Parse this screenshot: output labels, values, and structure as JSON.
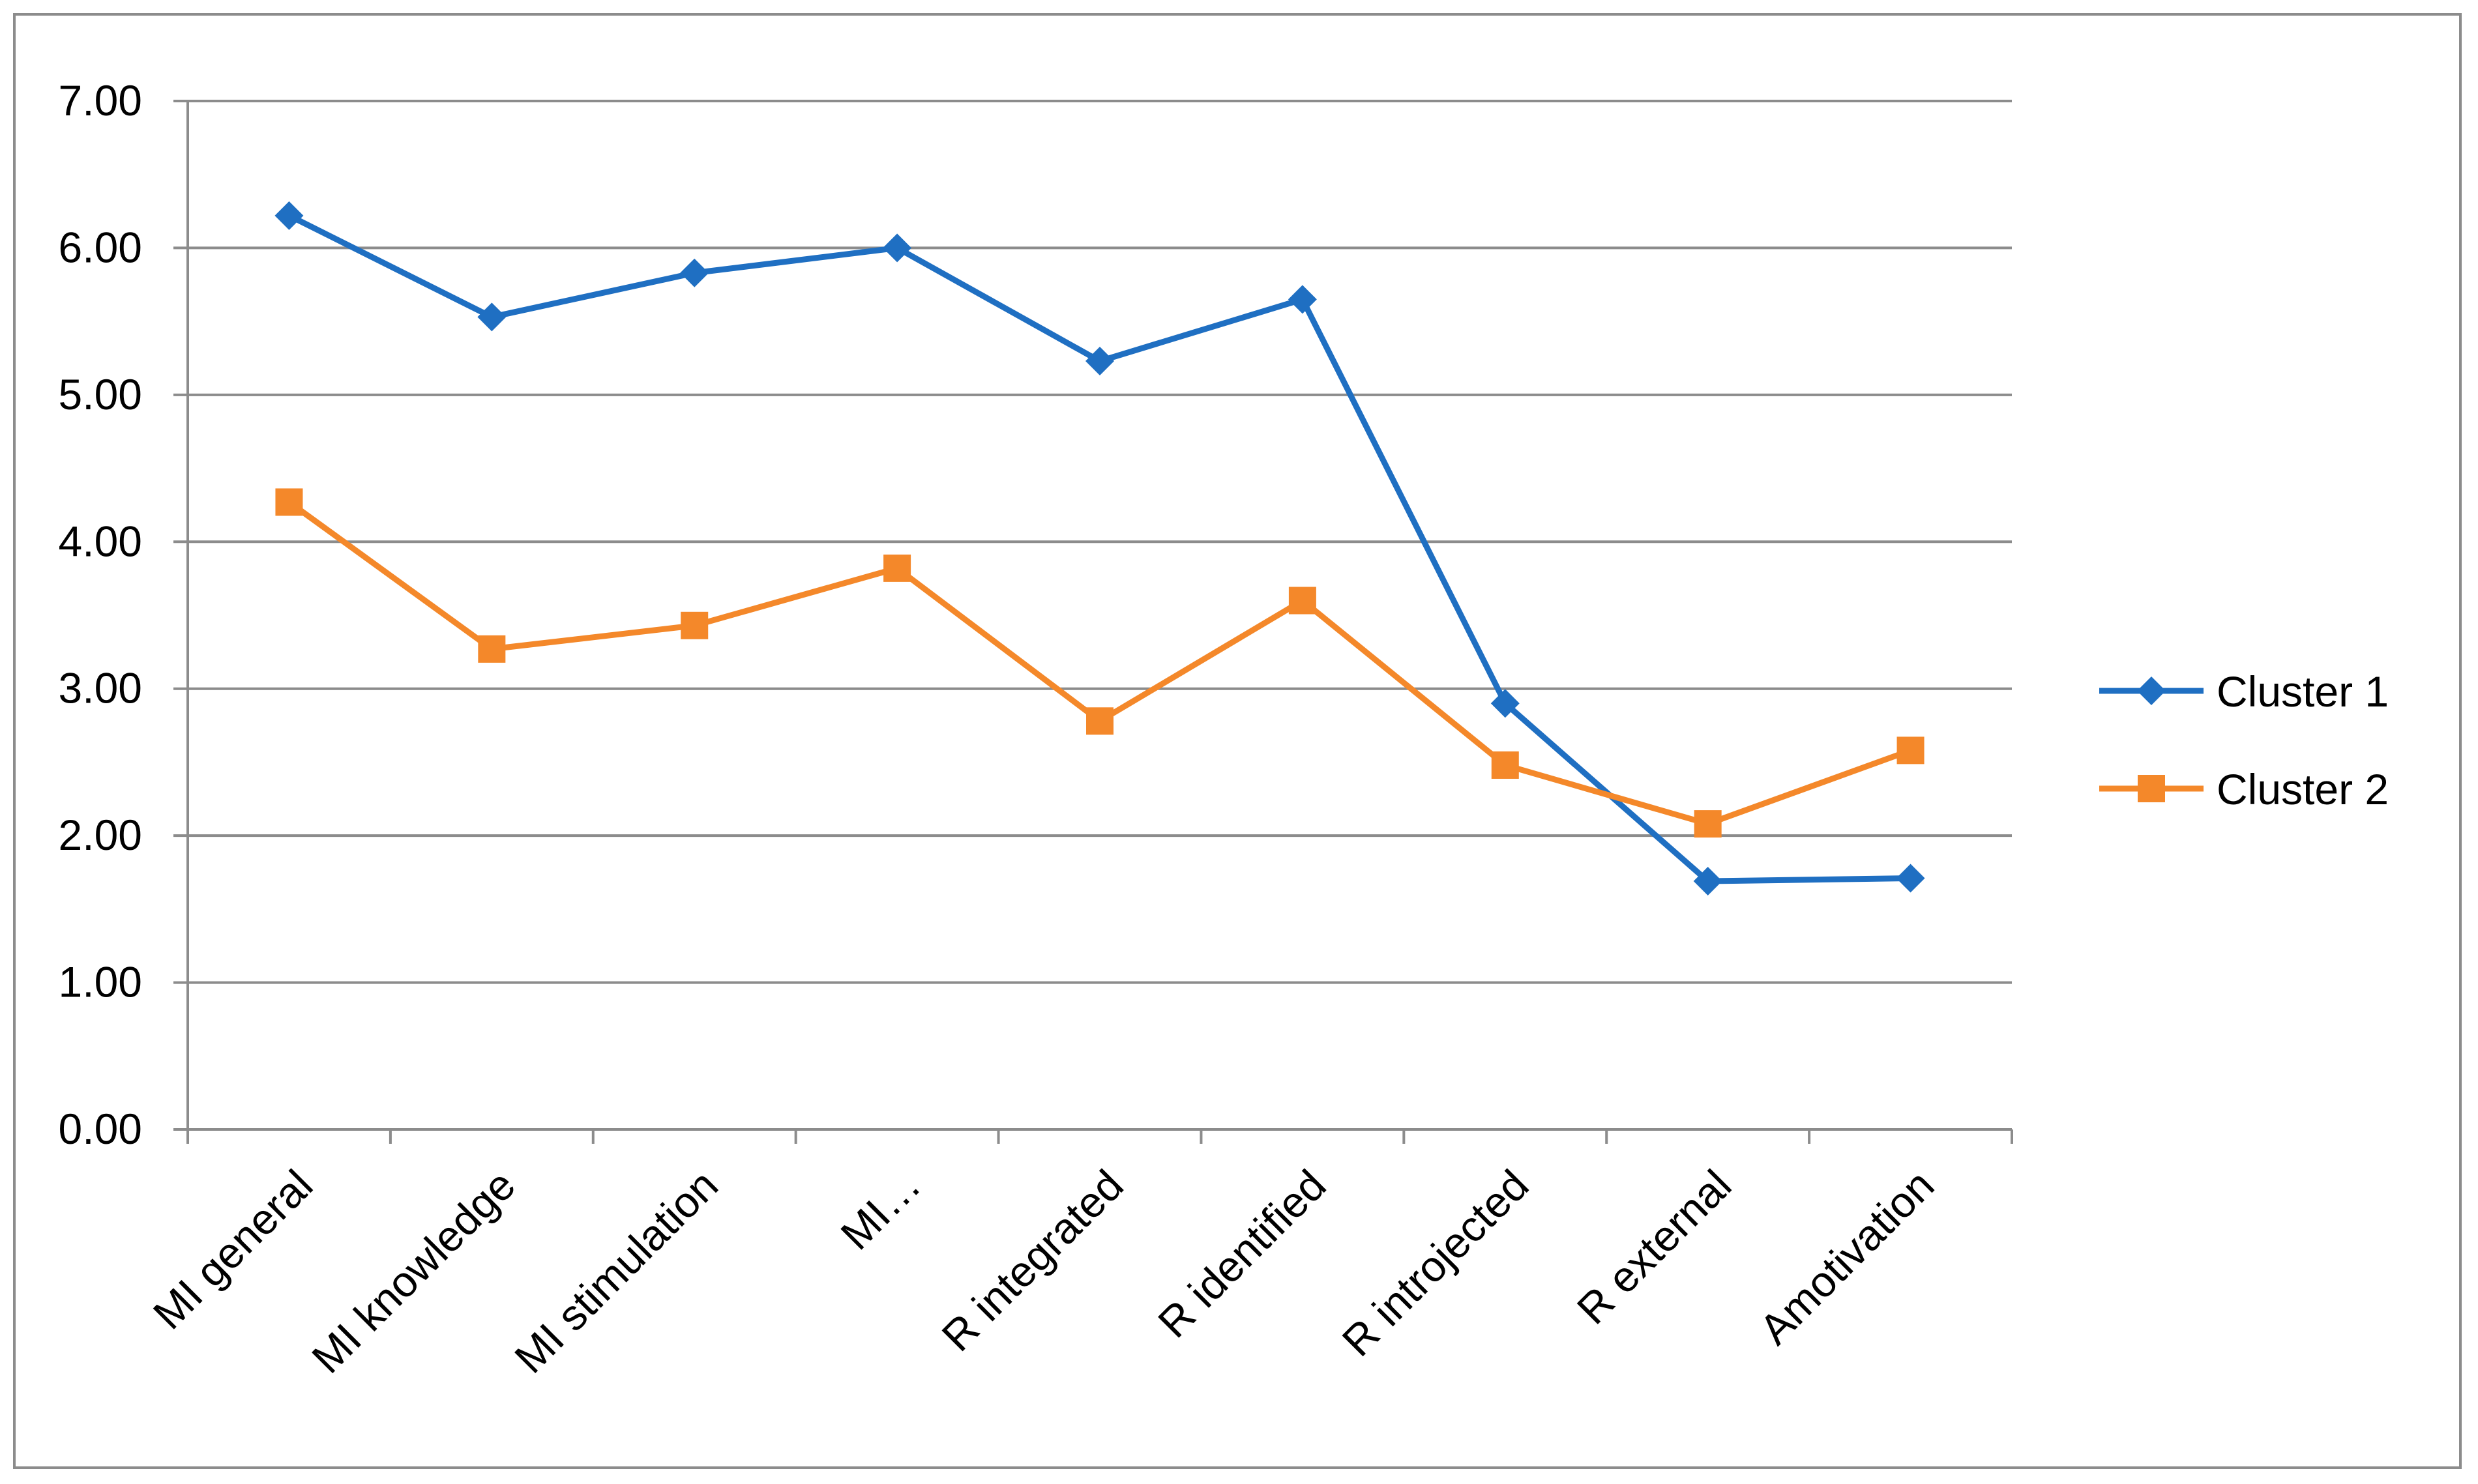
{
  "chart_data": {
    "type": "line",
    "title": "",
    "xlabel": "",
    "ylabel": "",
    "categories": [
      "MI general",
      "MI knowledge",
      "MI stimulation",
      "MI…",
      "R integrated",
      "R identified",
      "R introjected",
      "R external",
      "Amotivation"
    ],
    "ylim": [
      0,
      7
    ],
    "yticks": [
      "0.00",
      "1.00",
      "2.00",
      "3.00",
      "4.00",
      "5.00",
      "6.00",
      "7.00"
    ],
    "grid": "horizontal",
    "legend_position": "right",
    "series": [
      {
        "name": "Cluster 1",
        "color": "#1f6fc2",
        "marker": "diamond",
        "values": [
          6.22,
          5.53,
          5.83,
          6.0,
          5.23,
          5.65,
          2.9,
          1.69,
          1.71
        ]
      },
      {
        "name": "Cluster 2",
        "color": "#f4882a",
        "marker": "square",
        "values": [
          4.27,
          3.27,
          3.43,
          3.82,
          2.78,
          3.6,
          2.48,
          2.08,
          2.58
        ]
      }
    ]
  }
}
